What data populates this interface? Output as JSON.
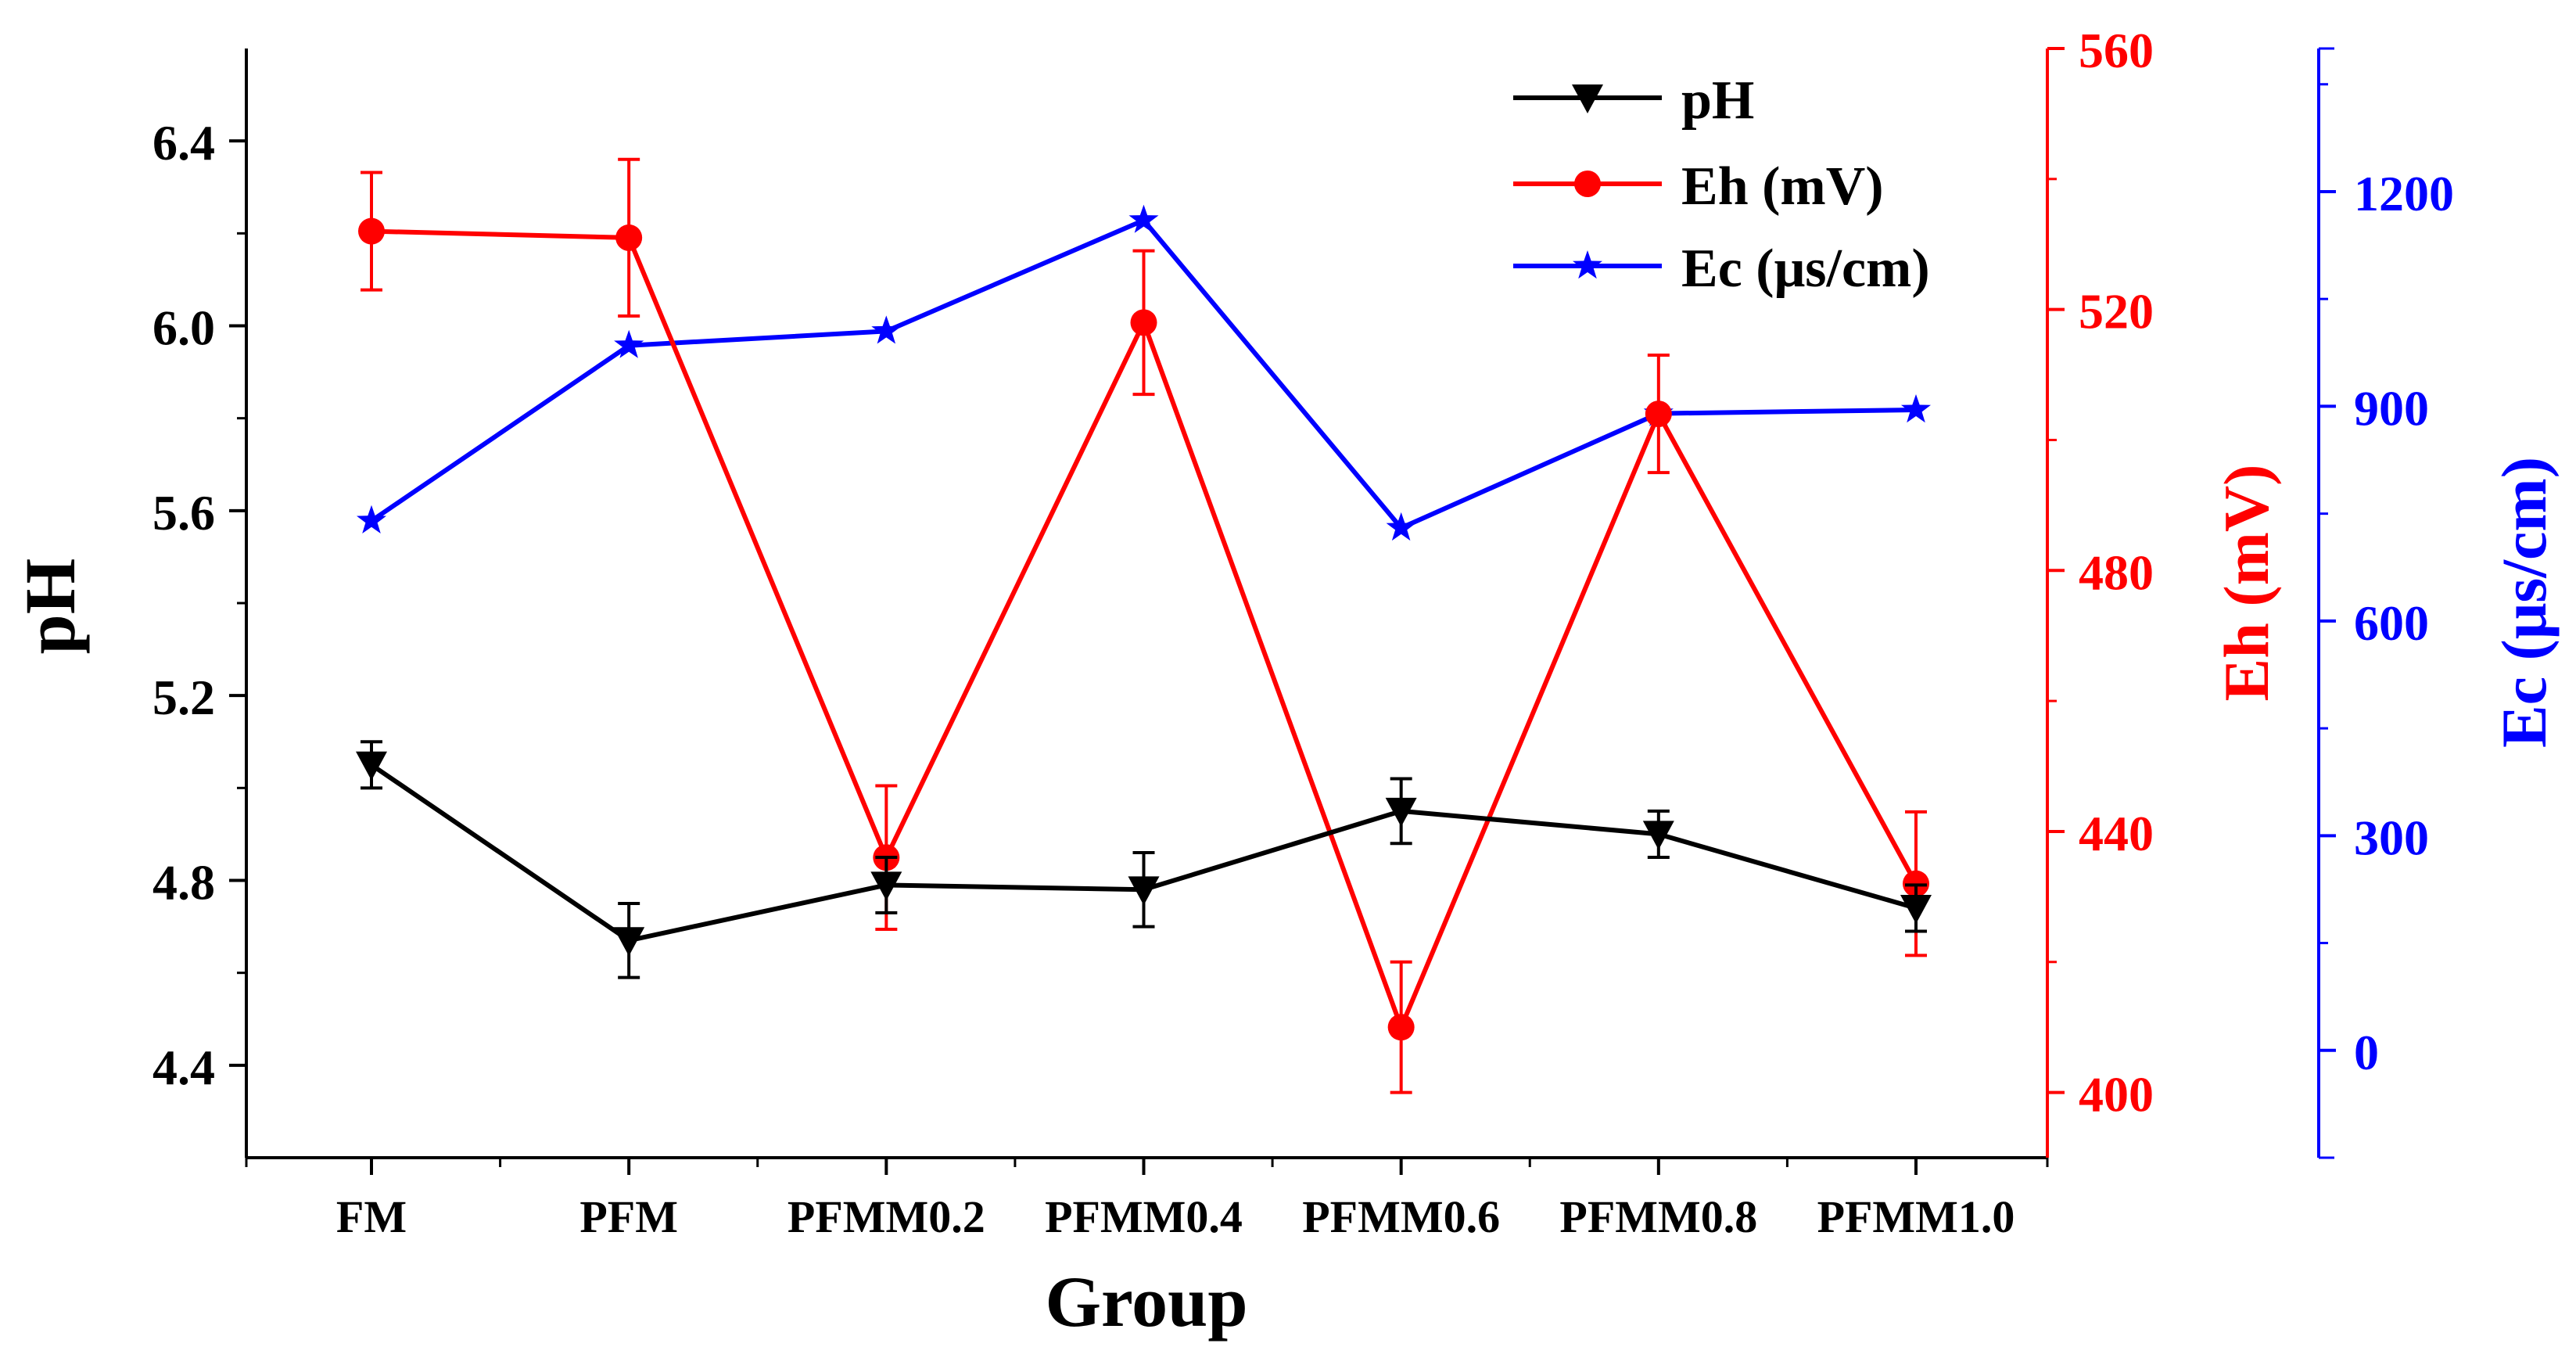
{
  "chart_data": {
    "type": "line",
    "title": "",
    "xlabel": "Group",
    "categories": [
      "FM",
      "PFM",
      "PFMM0.2",
      "PFMM0.4",
      "PFMM0.6",
      "PFMM0.8",
      "PFMM1.0"
    ],
    "axes": [
      {
        "id": "pH",
        "position": "left",
        "label": "pH",
        "color": "#000000",
        "range": [
          4.2,
          6.6
        ],
        "ticks": [
          4.4,
          4.8,
          5.2,
          5.6,
          6.0,
          6.4
        ],
        "tick_labels": [
          "4.4",
          "4.8",
          "5.2",
          "5.6",
          "6.0",
          "6.4"
        ]
      },
      {
        "id": "Eh",
        "position": "right",
        "label": "Eh (mV)",
        "color": "#ff0000",
        "range": [
          390,
          560
        ],
        "ticks": [
          400,
          440,
          480,
          520,
          560
        ],
        "tick_labels": [
          "400",
          "440",
          "480",
          "520",
          "560"
        ]
      },
      {
        "id": "Ec",
        "position": "right-offset",
        "label": "Ec (μs/cm)",
        "color": "#0000ff",
        "range": [
          -150,
          1400
        ],
        "ticks": [
          0,
          300,
          600,
          900,
          1200
        ],
        "tick_labels": [
          "0",
          "300",
          "600",
          "900",
          "1200"
        ]
      }
    ],
    "series": [
      {
        "name": "pH",
        "axis": "pH",
        "color": "#000000",
        "marker": "triangle-down",
        "values": [
          5.05,
          4.67,
          4.79,
          4.78,
          4.95,
          4.9,
          4.74
        ],
        "errors": [
          0.05,
          0.08,
          0.06,
          0.08,
          0.07,
          0.05,
          0.05
        ]
      },
      {
        "name": "Eh (mV)",
        "axis": "Eh",
        "color": "#ff0000",
        "marker": "circle",
        "values": [
          532,
          531,
          436,
          518,
          410,
          504,
          432
        ],
        "errors": [
          9,
          12,
          11,
          11,
          10,
          9,
          11
        ]
      },
      {
        "name": "Ec (μs/cm)",
        "axis": "Ec",
        "color": "#0000ff",
        "marker": "star",
        "values": [
          740,
          985,
          1005,
          1160,
          730,
          890,
          895
        ],
        "errors": null
      }
    ],
    "legend": {
      "position": "top-right",
      "entries": [
        "pH",
        "Eh (mV)",
        "Ec (μs/cm)"
      ]
    }
  }
}
